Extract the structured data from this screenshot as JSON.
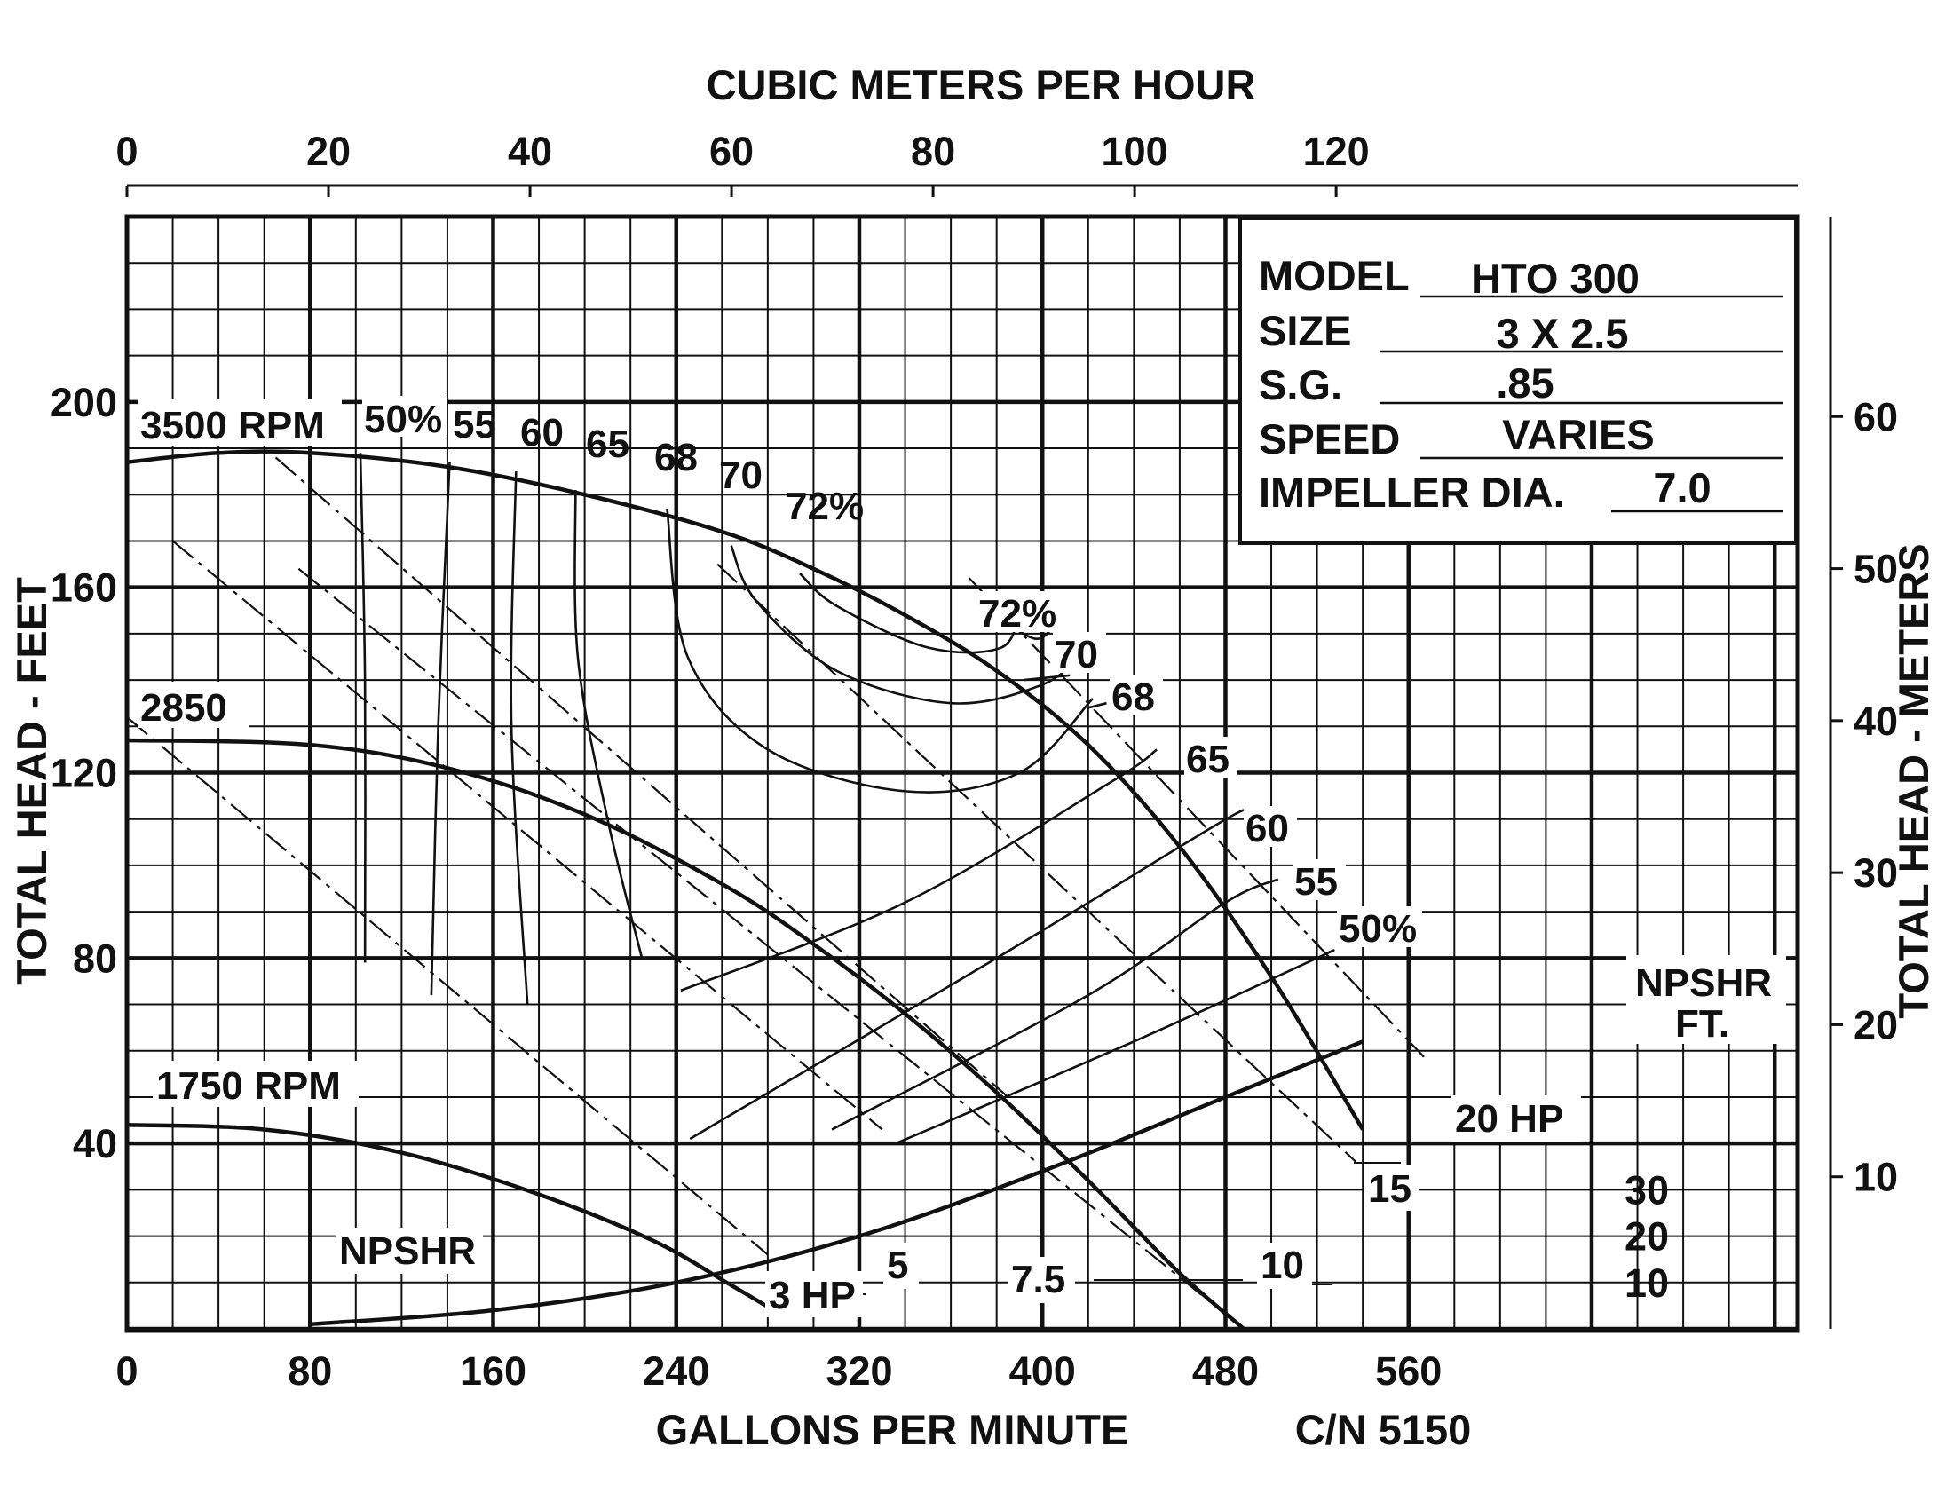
{
  "chart_data": {
    "type": "line",
    "title": "",
    "xlabel": "GALLONS PER MINUTE",
    "ylabel": "TOTAL HEAD - FEET",
    "xlabel_top": "CUBIC METERS PER HOUR",
    "ylabel_right": "TOTAL HEAD - METERS",
    "xlim": [
      0,
      730
    ],
    "ylim": [
      0,
      240
    ],
    "x_ticks": [
      "0",
      "80",
      "160",
      "240",
      "320",
      "400",
      "480",
      "560"
    ],
    "y_ticks": [
      "40",
      "80",
      "120",
      "160",
      "200"
    ],
    "x_top_ticks": [
      "0",
      "20",
      "40",
      "60",
      "80",
      "100",
      "120"
    ],
    "y_right_ticks": [
      "10",
      "20",
      "30",
      "40",
      "50",
      "60"
    ],
    "npshr_ticks": [
      "10",
      "20",
      "30"
    ],
    "npshr_axis_label": [
      "NPSHR",
      "FT."
    ],
    "grid": true,
    "curve_number": "C/N 5150",
    "info_box": {
      "rows": [
        {
          "label": "MODEL",
          "value": "HTO 300"
        },
        {
          "label": "SIZE",
          "value": "3 X 2.5"
        },
        {
          "label": "S.G.",
          "value": ".85"
        },
        {
          "label": "SPEED",
          "value": "VARIES"
        },
        {
          "label": "IMPELLER DIA.",
          "value": "7.0"
        }
      ]
    },
    "head_curves": [
      {
        "name": "3500 RPM",
        "x": [
          0,
          40,
          80,
          140,
          200,
          260,
          300,
          340,
          380,
          420,
          460,
          500,
          540
        ],
        "y": [
          187,
          189,
          189,
          186,
          180,
          172,
          164,
          154,
          142,
          126,
          104,
          76,
          43
        ]
      },
      {
        "name": "2850",
        "x": [
          0,
          80,
          140,
          200,
          260,
          300,
          340,
          380,
          420,
          460,
          488
        ],
        "y": [
          127,
          126,
          121,
          111,
          96,
          83,
          68,
          51,
          32,
          12,
          0
        ]
      },
      {
        "name": "1750 RPM",
        "x": [
          0,
          60,
          120,
          180,
          230,
          262,
          286
        ],
        "y": [
          44,
          43,
          38,
          29,
          19,
          10,
          3
        ]
      }
    ],
    "npshr_curve": {
      "name": "NPSHR",
      "x": [
        80,
        160,
        240,
        320,
        400,
        480,
        540
      ],
      "y": [
        1,
        4,
        10,
        20,
        34,
        50,
        62
      ]
    },
    "efficiency_contours": [
      {
        "label": "50%",
        "x": [
          102,
          104,
          104
        ],
        "y": [
          189,
          140,
          79
        ]
      },
      {
        "label": "55",
        "x": [
          141,
          136,
          133
        ],
        "y": [
          187,
          130,
          72
        ]
      },
      {
        "label": "60",
        "x": [
          170,
          168,
          175
        ],
        "y": [
          185,
          130,
          70
        ]
      },
      {
        "label": "65",
        "x": [
          196,
          197,
          210,
          225
        ],
        "y": [
          181,
          145,
          110,
          80
        ]
      },
      {
        "label": "68",
        "x": [
          236,
          245,
          280,
          340,
          390,
          422
        ],
        "y": [
          177,
          145,
          125,
          116,
          120,
          136
        ]
      },
      {
        "label": "70",
        "x": [
          264,
          275,
          310,
          360,
          400,
          418
        ],
        "y": [
          169,
          157,
          142,
          135,
          139,
          146
        ]
      },
      {
        "label": "72%",
        "x": [
          294,
          310,
          350,
          382,
          390
        ],
        "y": [
          163,
          156,
          147,
          147,
          155
        ]
      },
      {
        "label": "72%",
        "x": [
          376,
          396,
          404
        ],
        "y": [
          155,
          149,
          151
        ]
      },
      {
        "label": "70",
        "x": [
          412,
          392
        ],
        "y": [
          141,
          140
        ]
      },
      {
        "label": "68",
        "x": [
          428,
          420
        ],
        "y": [
          135,
          134
        ]
      },
      {
        "label": "65",
        "x": [
          242,
          340,
          430,
          450
        ],
        "y": [
          73,
          92,
          118,
          125
        ]
      },
      {
        "label": "60",
        "x": [
          246,
          380,
          470,
          488
        ],
        "y": [
          41,
          80,
          107,
          112
        ]
      },
      {
        "label": "55",
        "x": [
          308,
          420,
          480,
          503
        ],
        "y": [
          43,
          72,
          92,
          97
        ]
      },
      {
        "label": "50%",
        "x": [
          336,
          440,
          520,
          524
        ],
        "y": [
          40,
          62,
          80,
          81
        ]
      }
    ],
    "hp_lines": [
      {
        "label": "3 HP",
        "x": [
          0,
          280
        ],
        "y": [
          132,
          16
        ]
      },
      {
        "label": "5",
        "x": [
          20,
          330
        ],
        "y": [
          170,
          43
        ]
      },
      {
        "label": "7.5",
        "x": [
          65,
          385
        ],
        "y": [
          188,
          50
        ]
      },
      {
        "label": "10",
        "x": [
          75,
          488
        ],
        "y": [
          164,
          0
        ]
      },
      {
        "label": "15",
        "x": [
          258,
          537
        ],
        "y": [
          165,
          36
        ]
      },
      {
        "label": "20 HP",
        "x": [
          368,
          568
        ],
        "y": [
          162,
          58
        ]
      }
    ]
  },
  "labels": {
    "hp_3": "3 HP",
    "hp_5": "5",
    "hp_7_5": "7.5",
    "hp_10": "10",
    "hp_15": "15",
    "hp_20": "20 HP",
    "eff_left_50": "50%",
    "eff_left_55": "55",
    "eff_left_60": "60",
    "eff_left_65": "65",
    "eff_left_68": "68",
    "eff_left_70": "70",
    "eff_left_72": "72%",
    "eff_right_72": "72%",
    "eff_right_70": "70",
    "eff_right_68": "68",
    "eff_right_65": "65",
    "eff_right_60": "60",
    "eff_right_55": "55",
    "eff_right_50": "50%",
    "rpm_3500": "3500 RPM",
    "rpm_2850": "2850",
    "rpm_1750": "1750 RPM",
    "npshr_curve": "NPSHR"
  }
}
